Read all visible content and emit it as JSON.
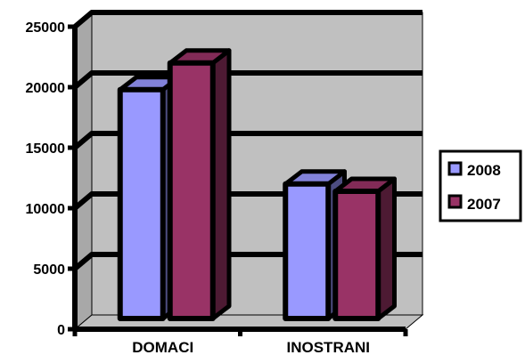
{
  "chart_data": {
    "type": "bar",
    "style": "3d-clustered-column",
    "categories": [
      "DOMACI",
      "INOSTRANI"
    ],
    "series": [
      {
        "name": "2008",
        "values": [
          19800,
          12000
        ],
        "color": "#9999ff"
      },
      {
        "name": "2007",
        "values": [
          22000,
          11400
        ],
        "color": "#993366"
      }
    ],
    "ylim": [
      0,
      25000
    ],
    "yticks": [
      "0",
      "5000",
      "10000",
      "15000",
      "20000",
      "25000"
    ],
    "grid": true,
    "legend_position": "right",
    "wall_color": "#c0c0c0",
    "floor_color": "#c0c0c0"
  }
}
